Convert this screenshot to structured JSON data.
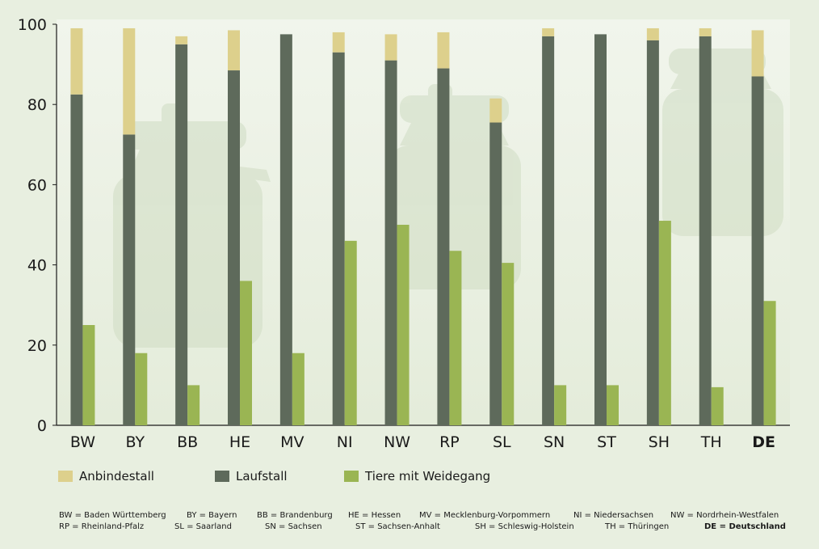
{
  "chart_data": {
    "type": "bar",
    "categories": [
      "BW",
      "BY",
      "BB",
      "HE",
      "MV",
      "NI",
      "NW",
      "RP",
      "SL",
      "SN",
      "ST",
      "SH",
      "TH",
      "DE"
    ],
    "highlight_category": "DE",
    "series": [
      {
        "name": "Laufstall",
        "stack": "housing",
        "values": [
          82.5,
          72.5,
          95,
          88.5,
          97.5,
          93,
          91,
          89,
          75.5,
          97,
          97.5,
          96,
          97,
          87
        ]
      },
      {
        "name": "Anbindestall",
        "stack": "housing",
        "values": [
          16.5,
          26.5,
          2,
          10,
          0,
          5,
          6.5,
          9,
          6,
          2,
          0,
          3,
          2,
          11.5
        ]
      },
      {
        "name": "Tiere mit Weidegang",
        "stack": "grazing",
        "values": [
          25,
          18,
          10,
          36,
          18,
          46,
          50,
          43.5,
          40.5,
          10,
          10,
          51,
          9.5,
          31
        ]
      }
    ],
    "ylim": [
      0,
      100
    ],
    "yticks": [
      0,
      20,
      40,
      60,
      80,
      100
    ],
    "colors": {
      "Anbindestall": "#ddd08c",
      "Laufstall": "#5e6a5b",
      "Tiere mit Weidegang": "#9ab553"
    },
    "legend": [
      "Anbindestall",
      "Laufstall",
      "Tiere mit Weidegang"
    ],
    "grid": false
  },
  "abbreviations_row1": [
    {
      "text": "BW = Baden Württemberg",
      "bold": false
    },
    {
      "text": "BY = Bayern",
      "bold": false
    },
    {
      "text": "BB = Brandenburg",
      "bold": false
    },
    {
      "text": "HE = Hessen",
      "bold": false
    },
    {
      "text": "MV = Mecklenburg-Vorpommern",
      "bold": false
    },
    {
      "text": "NI = Niedersachsen",
      "bold": false
    },
    {
      "text": "NW = Nordrhein-Westfalen",
      "bold": false
    }
  ],
  "abbreviations_row2": [
    {
      "text": "RP = Rheinland-Pfalz",
      "bold": false
    },
    {
      "text": "SL = Saarland",
      "bold": false
    },
    {
      "text": "SN = Sachsen",
      "bold": false
    },
    {
      "text": "ST = Sachsen-Anhalt",
      "bold": false
    },
    {
      "text": "SH = Schleswig-Holstein",
      "bold": false
    },
    {
      "text": "TH = Thüringen",
      "bold": false
    },
    {
      "text": "DE = Deutschland",
      "bold": true
    }
  ]
}
